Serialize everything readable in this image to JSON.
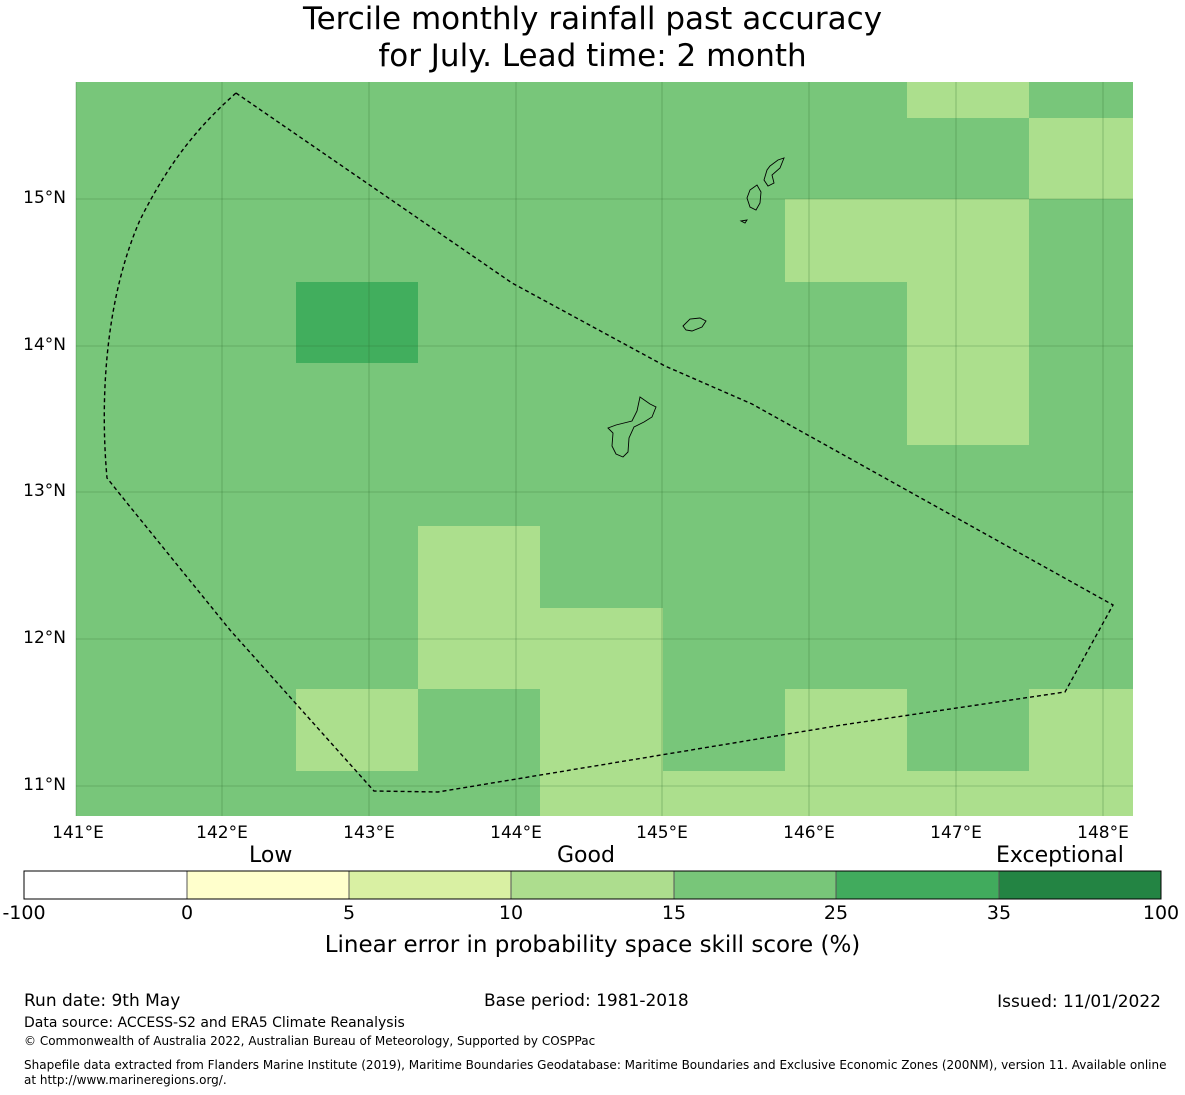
{
  "title": {
    "line1": "Tercile monthly rainfall past accuracy",
    "line2": "for July. Lead time: 2 month"
  },
  "map": {
    "lat_labels": [
      "15°N",
      "14°N",
      "13°N",
      "12°N",
      "11°N"
    ],
    "lon_labels": [
      "141°E",
      "142°E",
      "143°E",
      "144°E",
      "145°E",
      "146°E",
      "147°E",
      "148°E"
    ],
    "colors": {
      "background_class": "#78c67a",
      "light_class": "#acdf8d",
      "dark_class": "#41ae5d"
    }
  },
  "colorbar": {
    "word_low": "Low",
    "word_good": "Good",
    "word_exceptional": "Exceptional",
    "ticks": [
      "-100",
      "0",
      "5",
      "10",
      "15",
      "25",
      "35",
      "100"
    ],
    "colors": [
      "#ffffff",
      "#ffffcc",
      "#d9f0a3",
      "#addd8e",
      "#78c679",
      "#41ab5d",
      "#238443"
    ],
    "label": "Linear error in probability space skill score (%)"
  },
  "footer": {
    "run_date": "Run date: 9th May",
    "base_period": "Base period: 1981-2018",
    "issued": "Issued: 11/01/2022",
    "data_source": "Data source: ACCESS-S2 and ERA5 Climate Reanalysis",
    "copyright": "© Commonwealth of Australia 2022, Australian Bureau of Meteorology, Supported by COSPPac",
    "shapefile_line1": "Shapefile data extracted from Flanders Marine Institute (2019), Maritime Boundaries Geodatabase: Maritime Boundaries and Exclusive Economic Zones (200NM), version 11. Available online",
    "shapefile_line2": "at http://www.marineregions.org/."
  }
}
